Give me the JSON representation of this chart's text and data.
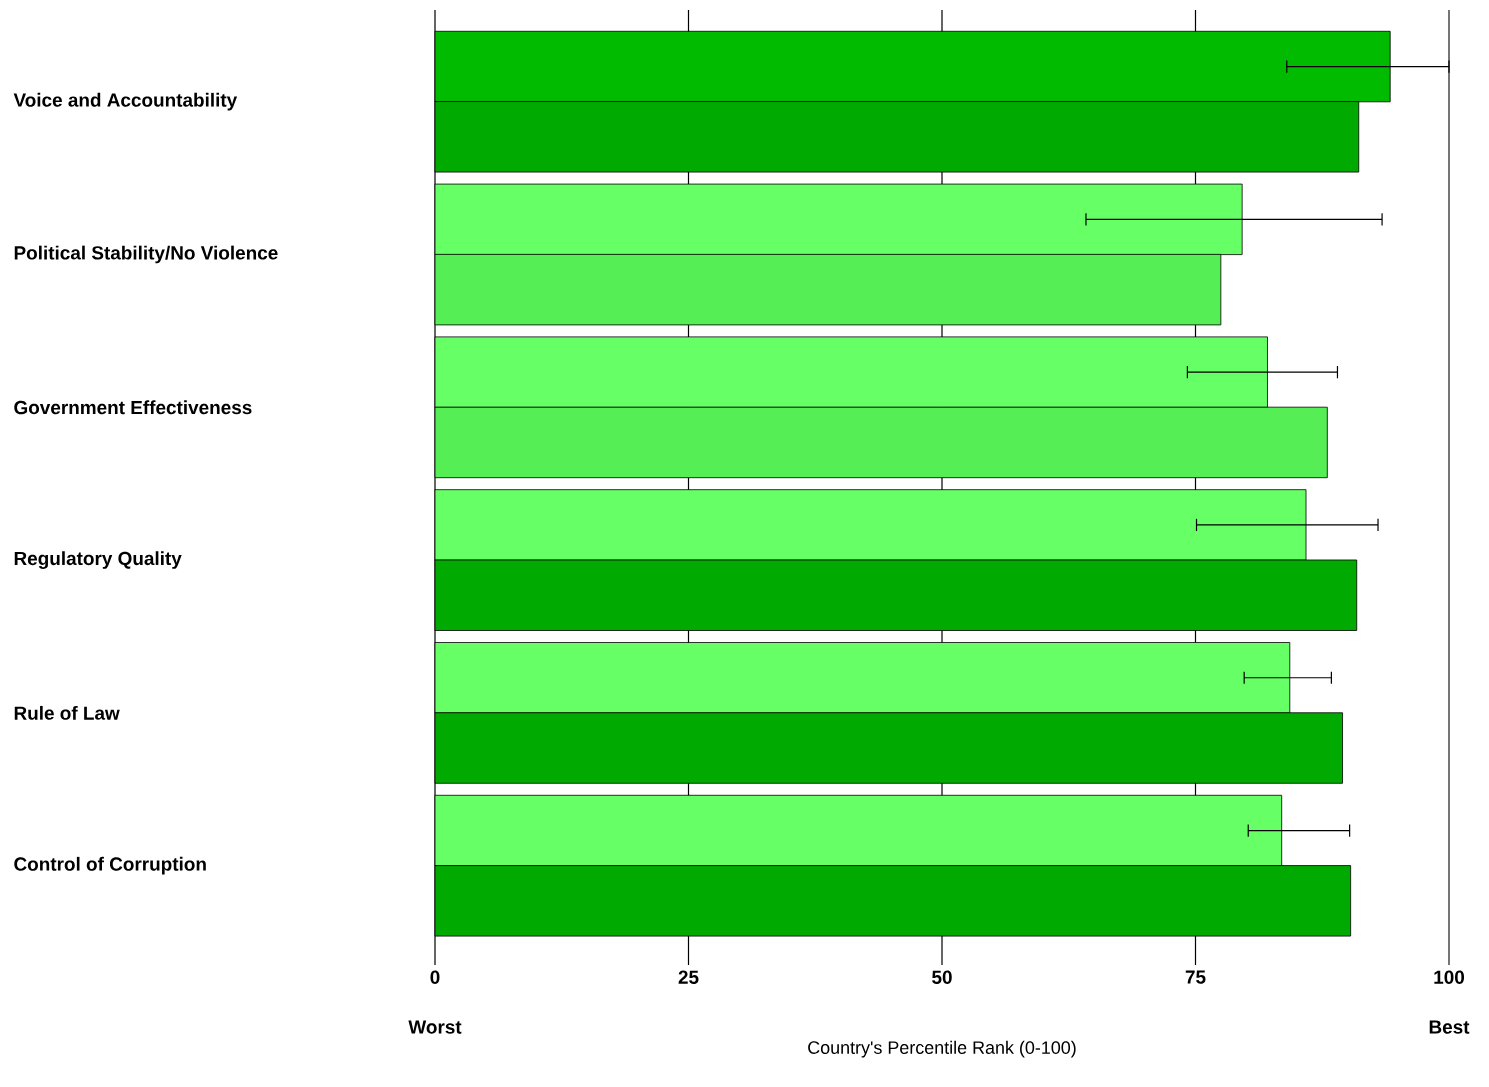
{
  "chart_data": {
    "type": "bar",
    "orientation": "horizontal",
    "xlabel": "Country's Percentile Rank (0-100)",
    "categories": [
      "Voice and Accountability",
      "Political Stability/No Violence",
      "Government Effectiveness",
      "Regulatory Quality",
      "Rule of Law",
      "Control of Corruption"
    ],
    "series": [
      {
        "colors": [
          "#00bb00",
          "#66ff66",
          "#66ff66",
          "#66ff66",
          "#66ff66",
          "#66ff66"
        ],
        "values": [
          94.2,
          79.6,
          82.1,
          85.9,
          84.3,
          83.5
        ],
        "errors": [
          [
            84,
            100
          ],
          [
            64.2,
            93.4
          ],
          [
            74.2,
            89
          ],
          [
            75.1,
            93
          ],
          [
            79.8,
            88.4
          ],
          [
            80.2,
            90.2
          ]
        ]
      },
      {
        "colors": [
          "#00aa00",
          "#55ee55",
          "#55ee55",
          "#00aa00",
          "#00aa00",
          "#00aa00"
        ],
        "values": [
          91.1,
          77.5,
          88.0,
          90.9,
          89.5,
          90.3
        ]
      }
    ],
    "xlim": [
      0,
      100
    ],
    "xticks": [
      0,
      25,
      50,
      75,
      100
    ],
    "grid": "x",
    "annotations": [
      "Worst",
      "Best"
    ]
  }
}
